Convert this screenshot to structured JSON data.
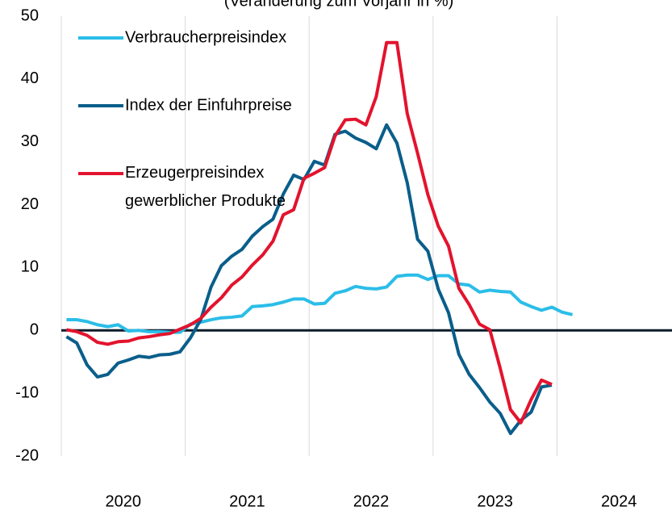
{
  "chart_data": {
    "type": "line",
    "title": "(Veränderung zum Vorjahr in %)",
    "x": [
      "2020-01",
      "2020-02",
      "2020-03",
      "2020-04",
      "2020-05",
      "2020-06",
      "2020-07",
      "2020-08",
      "2020-09",
      "2020-10",
      "2020-11",
      "2020-12",
      "2021-01",
      "2021-02",
      "2021-03",
      "2021-04",
      "2021-05",
      "2021-06",
      "2021-07",
      "2021-08",
      "2021-09",
      "2021-10",
      "2021-11",
      "2021-12",
      "2022-01",
      "2022-02",
      "2022-03",
      "2022-04",
      "2022-05",
      "2022-06",
      "2022-07",
      "2022-08",
      "2022-09",
      "2022-10",
      "2022-11",
      "2022-12",
      "2023-01",
      "2023-02",
      "2023-03",
      "2023-04",
      "2023-05",
      "2023-06",
      "2023-07",
      "2023-08",
      "2023-09",
      "2023-10",
      "2023-11",
      "2023-12",
      "2024-01",
      "2024-02"
    ],
    "series": [
      {
        "name": "Verbraucherpreisindex",
        "color": "#2bbde8",
        "values": [
          1.7,
          1.7,
          1.4,
          0.9,
          0.6,
          0.9,
          -0.1,
          0.0,
          -0.2,
          -0.2,
          -0.3,
          -0.3,
          1.0,
          1.3,
          1.7,
          2.0,
          2.1,
          2.3,
          3.8,
          3.9,
          4.1,
          4.5,
          5.0,
          5.0,
          4.2,
          4.3,
          5.9,
          6.3,
          7.0,
          6.7,
          6.6,
          6.9,
          8.6,
          8.8,
          8.8,
          8.1,
          8.7,
          8.7,
          7.4,
          7.2,
          6.1,
          6.4,
          6.2,
          6.1,
          4.5,
          3.8,
          3.2,
          3.7,
          2.9,
          2.5
        ]
      },
      {
        "name": "Index der Einfuhrpreise",
        "color": "#0a5e8a",
        "values": [
          -1.0,
          -2.0,
          -5.5,
          -7.4,
          -7.0,
          -5.2,
          -4.7,
          -4.1,
          -4.3,
          -3.9,
          -3.8,
          -3.4,
          -1.2,
          1.7,
          6.9,
          10.3,
          11.8,
          12.9,
          15.0,
          16.5,
          17.7,
          21.7,
          24.7,
          24.0,
          26.9,
          26.3,
          31.2,
          31.7,
          30.6,
          29.9,
          28.9,
          32.7,
          29.8,
          23.5,
          14.5,
          12.6,
          6.6,
          2.8,
          -3.8,
          -7.0,
          -9.1,
          -11.4,
          -13.2,
          -16.4,
          -14.3,
          -13.0,
          -9.0,
          -8.7,
          null,
          null
        ]
      },
      {
        "name": "Erzeugerpreisindex\ngewerblicher Produkte",
        "color": "#e3132d",
        "values": [
          0.1,
          -0.2,
          -0.8,
          -1.9,
          -2.2,
          -1.8,
          -1.7,
          -1.2,
          -1.0,
          -0.7,
          -0.5,
          0.2,
          0.9,
          1.9,
          3.7,
          5.2,
          7.2,
          8.5,
          10.4,
          12.0,
          14.2,
          18.4,
          19.2,
          24.2,
          25.0,
          25.9,
          30.9,
          33.5,
          33.6,
          32.7,
          37.2,
          45.8,
          45.8,
          34.5,
          28.2,
          21.6,
          16.6,
          13.4,
          6.7,
          4.1,
          1.0,
          0.1,
          -6.0,
          -12.6,
          -14.7,
          -11.0,
          -7.9,
          -8.6,
          null,
          null
        ]
      }
    ],
    "xlim": [
      "2020-01",
      "2024-12"
    ],
    "xticks": [
      2020,
      2021,
      2022,
      2023,
      2024
    ],
    "ylim": [
      -20,
      50
    ],
    "yticks": [
      -20,
      -10,
      0,
      10,
      20,
      30,
      40,
      50
    ],
    "grid": true
  }
}
